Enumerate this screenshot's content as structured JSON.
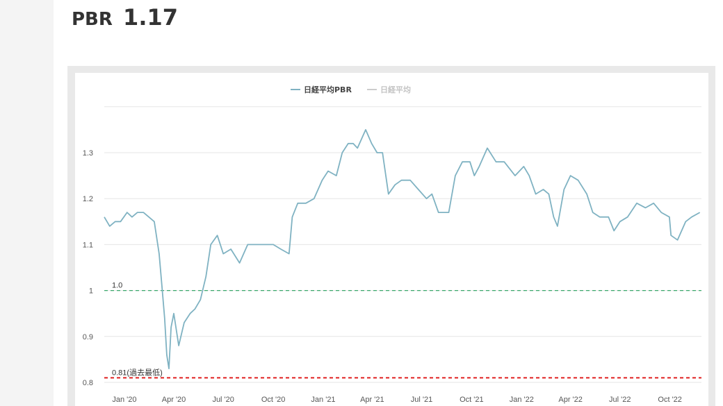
{
  "header": {
    "label": "PBR",
    "value": "1.17"
  },
  "colors": {
    "pbr_line": "#7fb2c2",
    "index_line": "#cccccc",
    "grid": "#e6e6e6",
    "ref_1": "#3aa86b",
    "ref_low": "#e02020",
    "text": "#555555"
  },
  "chart_data": {
    "type": "line",
    "legend": [
      {
        "name": "日経平均PBR",
        "active": true
      },
      {
        "name": "日経平均",
        "active": false
      }
    ],
    "legend_position": "top-center",
    "grid": true,
    "ylim": [
      0.8,
      1.4
    ],
    "y_ticks": [
      {
        "value": 0.8,
        "label": "0.8"
      },
      {
        "value": 0.9,
        "label": "0.9"
      },
      {
        "value": 1.0,
        "label": "1"
      },
      {
        "value": 1.1,
        "label": "1.1"
      },
      {
        "value": 1.2,
        "label": "1.2"
      },
      {
        "value": 1.3,
        "label": "1.3"
      }
    ],
    "xlim": [
      "2019-11-25",
      "2022-11-28"
    ],
    "x_ticks": [
      {
        "date": "2020-01-01",
        "label": "Jan '20"
      },
      {
        "date": "2020-04-01",
        "label": "Apr '20"
      },
      {
        "date": "2020-07-01",
        "label": "Jul '20"
      },
      {
        "date": "2020-10-01",
        "label": "Oct '20"
      },
      {
        "date": "2021-01-01",
        "label": "Jan '21"
      },
      {
        "date": "2021-04-01",
        "label": "Apr '21"
      },
      {
        "date": "2021-07-01",
        "label": "Jul '21"
      },
      {
        "date": "2021-10-01",
        "label": "Oct '21"
      },
      {
        "date": "2022-01-01",
        "label": "Jan '22"
      },
      {
        "date": "2022-04-01",
        "label": "Apr '22"
      },
      {
        "date": "2022-07-01",
        "label": "Jul '22"
      },
      {
        "date": "2022-10-01",
        "label": "Oct '22"
      }
    ],
    "reference_lines": [
      {
        "value": 1.0,
        "label": "1.0",
        "style": "dashed",
        "color": "#3aa86b"
      },
      {
        "value": 0.81,
        "label": "0.81(過去最低)",
        "style": "dashed",
        "color": "#e02020"
      }
    ],
    "series": [
      {
        "name": "日経平均PBR",
        "x": [
          "2019-11-25",
          "2019-12-05",
          "2019-12-15",
          "2019-12-25",
          "2020-01-06",
          "2020-01-15",
          "2020-01-25",
          "2020-02-05",
          "2020-02-15",
          "2020-02-25",
          "2020-03-05",
          "2020-03-10",
          "2020-03-15",
          "2020-03-19",
          "2020-03-23",
          "2020-03-27",
          "2020-04-01",
          "2020-04-10",
          "2020-04-20",
          "2020-05-01",
          "2020-05-10",
          "2020-05-20",
          "2020-05-30",
          "2020-06-08",
          "2020-06-20",
          "2020-07-01",
          "2020-07-15",
          "2020-07-31",
          "2020-08-15",
          "2020-09-01",
          "2020-09-15",
          "2020-10-01",
          "2020-10-15",
          "2020-10-30",
          "2020-11-05",
          "2020-11-15",
          "2020-11-30",
          "2020-12-15",
          "2020-12-30",
          "2021-01-10",
          "2021-01-25",
          "2021-02-05",
          "2021-02-16",
          "2021-02-25",
          "2021-03-05",
          "2021-03-20",
          "2021-03-31",
          "2021-04-10",
          "2021-04-20",
          "2021-05-01",
          "2021-05-13",
          "2021-05-25",
          "2021-06-10",
          "2021-06-25",
          "2021-07-10",
          "2021-07-20",
          "2021-08-01",
          "2021-08-20",
          "2021-09-01",
          "2021-09-14",
          "2021-09-28",
          "2021-10-06",
          "2021-10-15",
          "2021-10-30",
          "2021-11-15",
          "2021-11-30",
          "2021-12-20",
          "2022-01-05",
          "2022-01-15",
          "2022-01-27",
          "2022-02-10",
          "2022-02-20",
          "2022-03-01",
          "2022-03-08",
          "2022-03-20",
          "2022-04-01",
          "2022-04-15",
          "2022-05-01",
          "2022-05-12",
          "2022-05-25",
          "2022-06-10",
          "2022-06-20",
          "2022-07-01",
          "2022-07-15",
          "2022-08-01",
          "2022-08-17",
          "2022-09-01",
          "2022-09-15",
          "2022-09-30",
          "2022-10-03",
          "2022-10-15",
          "2022-10-30",
          "2022-11-10",
          "2022-11-25"
        ],
        "values": [
          1.16,
          1.14,
          1.15,
          1.15,
          1.17,
          1.16,
          1.17,
          1.17,
          1.16,
          1.15,
          1.08,
          1.01,
          0.94,
          0.86,
          0.83,
          0.92,
          0.95,
          0.88,
          0.93,
          0.95,
          0.96,
          0.98,
          1.03,
          1.1,
          1.12,
          1.08,
          1.09,
          1.06,
          1.1,
          1.1,
          1.1,
          1.1,
          1.09,
          1.08,
          1.16,
          1.19,
          1.19,
          1.2,
          1.24,
          1.26,
          1.25,
          1.3,
          1.32,
          1.32,
          1.31,
          1.35,
          1.32,
          1.3,
          1.3,
          1.21,
          1.23,
          1.24,
          1.24,
          1.22,
          1.2,
          1.21,
          1.17,
          1.17,
          1.25,
          1.28,
          1.28,
          1.25,
          1.27,
          1.31,
          1.28,
          1.28,
          1.25,
          1.27,
          1.25,
          1.21,
          1.22,
          1.21,
          1.16,
          1.14,
          1.22,
          1.25,
          1.24,
          1.21,
          1.17,
          1.16,
          1.16,
          1.13,
          1.15,
          1.16,
          1.19,
          1.18,
          1.19,
          1.17,
          1.16,
          1.12,
          1.11,
          1.15,
          1.16,
          1.17
        ]
      }
    ]
  }
}
